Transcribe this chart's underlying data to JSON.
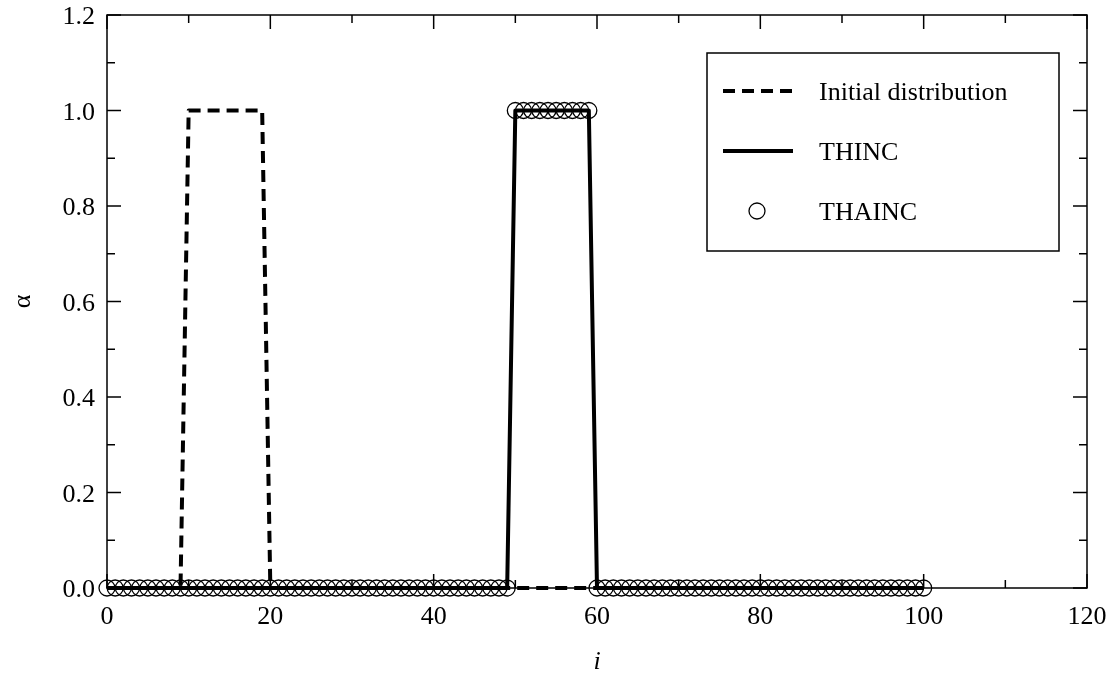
{
  "chart_data": {
    "type": "line",
    "xlabel": "i",
    "ylabel": "α",
    "x": [
      0,
      1,
      2,
      3,
      4,
      5,
      6,
      7,
      8,
      9,
      10,
      11,
      12,
      13,
      14,
      15,
      16,
      17,
      18,
      19,
      20,
      21,
      22,
      23,
      24,
      25,
      26,
      27,
      28,
      29,
      30,
      31,
      32,
      33,
      34,
      35,
      36,
      37,
      38,
      39,
      40,
      41,
      42,
      43,
      44,
      45,
      46,
      47,
      48,
      49,
      50,
      51,
      52,
      53,
      54,
      55,
      56,
      57,
      58,
      59,
      60,
      61,
      62,
      63,
      64,
      65,
      66,
      67,
      68,
      69,
      70,
      71,
      72,
      73,
      74,
      75,
      76,
      77,
      78,
      79,
      80,
      81,
      82,
      83,
      84,
      85,
      86,
      87,
      88,
      89,
      90,
      91,
      92,
      93,
      94,
      95,
      96,
      97,
      98,
      99,
      100
    ],
    "series": [
      {
        "name": "Initial distribution",
        "color": "#000000",
        "line_style": "dashed",
        "values": [
          0,
          0,
          0,
          0,
          0,
          0,
          0,
          0,
          0,
          0,
          1,
          1,
          1,
          1,
          1,
          1,
          1,
          1,
          1,
          1,
          0,
          0,
          0,
          0,
          0,
          0,
          0,
          0,
          0,
          0,
          0,
          0,
          0,
          0,
          0,
          0,
          0,
          0,
          0,
          0,
          0,
          0,
          0,
          0,
          0,
          0,
          0,
          0,
          0,
          0,
          0,
          0,
          0,
          0,
          0,
          0,
          0,
          0,
          0,
          0,
          0,
          0,
          0,
          0,
          0,
          0,
          0,
          0,
          0,
          0,
          0,
          0,
          0,
          0,
          0,
          0,
          0,
          0,
          0,
          0,
          0,
          0,
          0,
          0,
          0,
          0,
          0,
          0,
          0,
          0,
          0,
          0,
          0,
          0,
          0,
          0,
          0,
          0,
          0,
          0,
          0
        ]
      },
      {
        "name": "THINC",
        "color": "#000000",
        "line_style": "solid",
        "values": [
          0,
          0,
          0,
          0,
          0,
          0,
          0,
          0,
          0,
          0,
          0,
          0,
          0,
          0,
          0,
          0,
          0,
          0,
          0,
          0,
          0,
          0,
          0,
          0,
          0,
          0,
          0,
          0,
          0,
          0,
          0,
          0,
          0,
          0,
          0,
          0,
          0,
          0,
          0,
          0,
          0,
          0,
          0,
          0,
          0,
          0,
          0,
          0,
          0,
          0,
          1,
          1,
          1,
          1,
          1,
          1,
          1,
          1,
          1,
          1,
          0,
          0,
          0,
          0,
          0,
          0,
          0,
          0,
          0,
          0,
          0,
          0,
          0,
          0,
          0,
          0,
          0,
          0,
          0,
          0,
          0,
          0,
          0,
          0,
          0,
          0,
          0,
          0,
          0,
          0,
          0,
          0,
          0,
          0,
          0,
          0,
          0,
          0,
          0,
          0,
          0
        ]
      },
      {
        "name": "THAINC",
        "type": "scatter",
        "color": "#000000",
        "marker": "circle",
        "values": [
          0,
          0,
          0,
          0,
          0,
          0,
          0,
          0,
          0,
          0,
          0,
          0,
          0,
          0,
          0,
          0,
          0,
          0,
          0,
          0,
          0,
          0,
          0,
          0,
          0,
          0,
          0,
          0,
          0,
          0,
          0,
          0,
          0,
          0,
          0,
          0,
          0,
          0,
          0,
          0,
          0,
          0,
          0,
          0,
          0,
          0,
          0,
          0,
          0,
          0,
          1,
          1,
          1,
          1,
          1,
          1,
          1,
          1,
          1,
          1,
          0,
          0,
          0,
          0,
          0,
          0,
          0,
          0,
          0,
          0,
          0,
          0,
          0,
          0,
          0,
          0,
          0,
          0,
          0,
          0,
          0,
          0,
          0,
          0,
          0,
          0,
          0,
          0,
          0,
          0,
          0,
          0,
          0,
          0,
          0,
          0,
          0,
          0,
          0,
          0,
          0
        ]
      }
    ],
    "xlim": [
      0,
      120
    ],
    "xticks": [
      0,
      {
        "value": 10,
        "label": null
      },
      20,
      {
        "value": 30,
        "label": null
      },
      40,
      {
        "value": 50,
        "label": null
      },
      60,
      {
        "value": 70,
        "label": null
      },
      80,
      {
        "value": 90,
        "label": null
      },
      100,
      {
        "value": 110,
        "label": null
      },
      120
    ],
    "ylim": [
      0,
      1.2
    ],
    "yticks": [
      {
        "value": 0,
        "label": "0.0"
      },
      {
        "value": 0.1,
        "label": null
      },
      {
        "value": 0.2,
        "label": "0.2"
      },
      {
        "value": 0.3,
        "label": null
      },
      {
        "value": 0.4,
        "label": "0.4"
      },
      {
        "value": 0.5,
        "label": null
      },
      {
        "value": 0.6,
        "label": "0.6"
      },
      {
        "value": 0.7,
        "label": null
      },
      {
        "value": 0.8,
        "label": "0.8"
      },
      {
        "value": 0.9,
        "label": null
      },
      {
        "value": 1,
        "label": "1.0"
      },
      {
        "value": 1.1,
        "label": null
      },
      {
        "value": 1.2,
        "label": "1.2"
      }
    ],
    "grid": false,
    "legend": "top right"
  }
}
